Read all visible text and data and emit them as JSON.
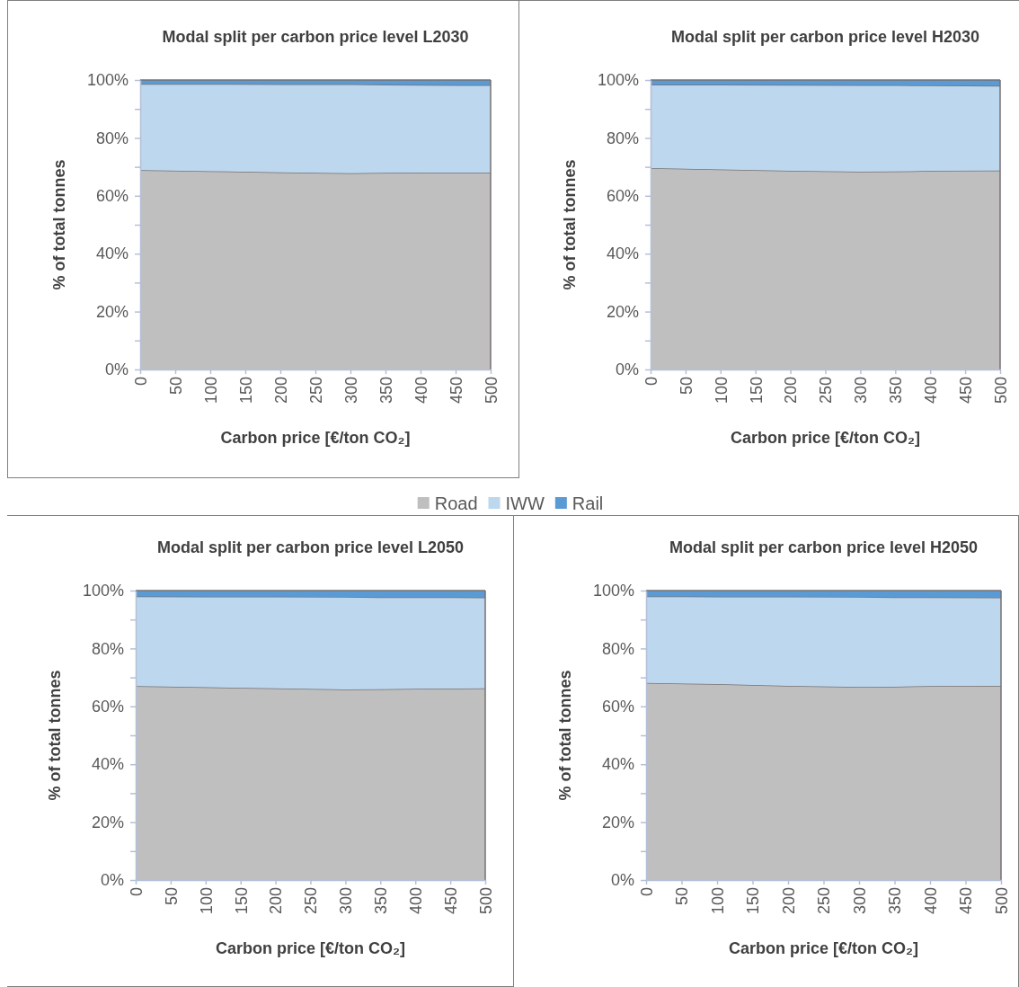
{
  "chart_data": [
    {
      "type": "area",
      "stacked": true,
      "title": "Modal split per carbon price level L2030",
      "xlabel": "Carbon price [€/ton CO₂]",
      "ylabel": "% of total tonnes",
      "x": [
        0,
        100,
        200,
        300,
        350,
        400,
        500
      ],
      "xlim": [
        0,
        500
      ],
      "xticks": [
        0,
        50,
        100,
        150,
        200,
        250,
        300,
        350,
        400,
        450,
        500
      ],
      "ylim": [
        0,
        100
      ],
      "yticks": [
        {
          "value": 0,
          "label": "0%"
        },
        {
          "value": 10,
          "label": null
        },
        {
          "value": 20,
          "label": "20%"
        },
        {
          "value": 30,
          "label": null
        },
        {
          "value": 40,
          "label": "40%"
        },
        {
          "value": 50,
          "label": null
        },
        {
          "value": 60,
          "label": "60%"
        },
        {
          "value": 70,
          "label": null
        },
        {
          "value": 80,
          "label": "80%"
        },
        {
          "value": 90,
          "label": null
        },
        {
          "value": 100,
          "label": "100%"
        }
      ],
      "legend": "bottom",
      "series": [
        {
          "name": "Road",
          "color": "#bfbfbf",
          "values": [
            68.9,
            68.5,
            68.1,
            67.8,
            67.9,
            68.0,
            68.0
          ]
        },
        {
          "name": "IWW",
          "color": "#bdd7ee",
          "values": [
            29.7,
            30.1,
            30.4,
            30.7,
            30.5,
            30.3,
            30.2
          ]
        },
        {
          "name": "Rail",
          "color": "#5b9bd5",
          "values": [
            1.4,
            1.4,
            1.5,
            1.5,
            1.6,
            1.7,
            1.8
          ]
        }
      ]
    },
    {
      "type": "area",
      "stacked": true,
      "title": "Modal split per carbon price level H2030",
      "xlabel": "Carbon price [€/ton CO₂]",
      "ylabel": "% of total tonnes",
      "x": [
        0,
        100,
        200,
        300,
        350,
        400,
        500
      ],
      "xlim": [
        0,
        500
      ],
      "xticks": [
        0,
        50,
        100,
        150,
        200,
        250,
        300,
        350,
        400,
        450,
        500
      ],
      "ylim": [
        0,
        100
      ],
      "yticks": [
        {
          "value": 0,
          "label": "0%"
        },
        {
          "value": 10,
          "label": null
        },
        {
          "value": 20,
          "label": "20%"
        },
        {
          "value": 30,
          "label": null
        },
        {
          "value": 40,
          "label": "40%"
        },
        {
          "value": 50,
          "label": null
        },
        {
          "value": 60,
          "label": "60%"
        },
        {
          "value": 70,
          "label": null
        },
        {
          "value": 80,
          "label": "80%"
        },
        {
          "value": 90,
          "label": null
        },
        {
          "value": 100,
          "label": "100%"
        }
      ],
      "series": [
        {
          "color": "#bfbfbf",
          "values": [
            69.6,
            69.1,
            68.6,
            68.3,
            68.4,
            68.6,
            68.7
          ]
        },
        {
          "color": "#bdd7ee",
          "values": [
            28.8,
            29.3,
            29.7,
            29.9,
            29.8,
            29.5,
            29.3
          ]
        },
        {
          "color": "#5b9bd5",
          "values": [
            1.6,
            1.6,
            1.7,
            1.8,
            1.8,
            1.9,
            2.0
          ]
        }
      ]
    },
    {
      "type": "area",
      "stacked": true,
      "title": "Modal split per carbon price level L2050",
      "xlabel": "Carbon price [€/ton CO₂]",
      "ylabel": "% of total tonnes",
      "x": [
        0,
        100,
        200,
        300,
        350,
        400,
        500
      ],
      "xlim": [
        0,
        500
      ],
      "xticks": [
        0,
        50,
        100,
        150,
        200,
        250,
        300,
        350,
        400,
        450,
        500
      ],
      "ylim": [
        0,
        100
      ],
      "yticks": [
        {
          "value": 0,
          "label": "0%"
        },
        {
          "value": 10,
          "label": null
        },
        {
          "value": 20,
          "label": "20%"
        },
        {
          "value": 30,
          "label": null
        },
        {
          "value": 40,
          "label": "40%"
        },
        {
          "value": 50,
          "label": null
        },
        {
          "value": 60,
          "label": "60%"
        },
        {
          "value": 70,
          "label": null
        },
        {
          "value": 80,
          "label": "80%"
        },
        {
          "value": 90,
          "label": null
        },
        {
          "value": 100,
          "label": "100%"
        }
      ],
      "series": [
        {
          "color": "#bfbfbf",
          "values": [
            67.0,
            66.6,
            66.2,
            65.8,
            65.9,
            66.1,
            66.2
          ]
        },
        {
          "color": "#bdd7ee",
          "values": [
            31.0,
            31.3,
            31.7,
            32.0,
            31.8,
            31.6,
            31.4
          ]
        },
        {
          "color": "#5b9bd5",
          "values": [
            2.0,
            2.1,
            2.1,
            2.2,
            2.3,
            2.3,
            2.4
          ]
        }
      ]
    },
    {
      "type": "area",
      "stacked": true,
      "title": "Modal split per carbon price level H2050",
      "xlabel": "Carbon price [€/ton CO₂]",
      "ylabel": "% of total tonnes",
      "x": [
        0,
        100,
        200,
        300,
        350,
        400,
        500
      ],
      "xlim": [
        0,
        500
      ],
      "xticks": [
        0,
        50,
        100,
        150,
        200,
        250,
        300,
        350,
        400,
        450,
        500
      ],
      "ylim": [
        0,
        100
      ],
      "yticks": [
        {
          "value": 0,
          "label": "0%"
        },
        {
          "value": 10,
          "label": null
        },
        {
          "value": 20,
          "label": "20%"
        },
        {
          "value": 30,
          "label": null
        },
        {
          "value": 40,
          "label": "40%"
        },
        {
          "value": 50,
          "label": null
        },
        {
          "value": 60,
          "label": "60%"
        },
        {
          "value": 70,
          "label": null
        },
        {
          "value": 80,
          "label": "80%"
        },
        {
          "value": 90,
          "label": null
        },
        {
          "value": 100,
          "label": "100%"
        }
      ],
      "series": [
        {
          "color": "#bfbfbf",
          "values": [
            68.1,
            67.7,
            67.1,
            66.7,
            66.8,
            67.0,
            67.1
          ]
        },
        {
          "color": "#bdd7ee",
          "values": [
            29.9,
            30.2,
            30.8,
            31.1,
            30.9,
            30.7,
            30.5
          ]
        },
        {
          "color": "#5b9bd5",
          "values": [
            2.0,
            2.1,
            2.1,
            2.2,
            2.3,
            2.3,
            2.4
          ]
        }
      ]
    }
  ]
}
